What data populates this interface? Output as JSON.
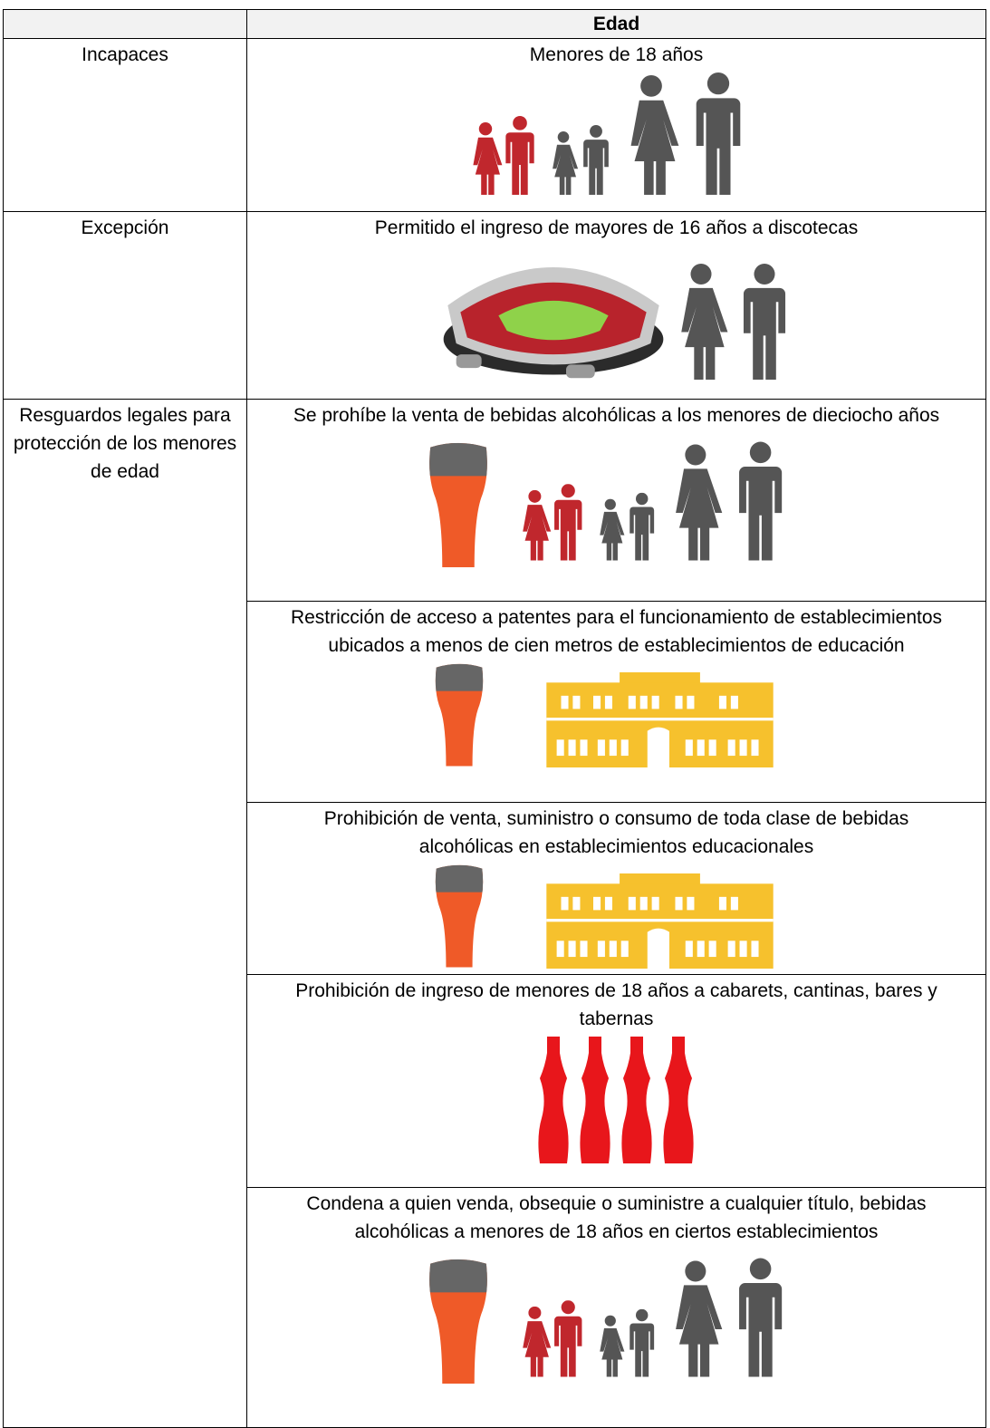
{
  "table": {
    "header": "Edad",
    "rows": [
      {
        "label": "Incapaces",
        "cells": [
          "Menores de 18 años"
        ]
      },
      {
        "label": "Excepción",
        "cells": [
          "Permitido el ingreso de mayores de 16 años a discotecas"
        ]
      },
      {
        "label": "Resguardos legales para protección de los menores de edad",
        "cells": [
          "Se prohíbe la venta de bebidas alcohólicas a los menores de dieciocho años",
          "Restricción de acceso a patentes para el funcionamiento de establecimientos ubicados a menos de cien metros de establecimientos de educación",
          "Prohibición de venta, suministro o consumo de toda clase de bebidas alcohólicas en establecimientos educacionales",
          "Prohibición de ingreso de menores de 18 años a cabarets, cantinas, bares y tabernas",
          "Condena a quien venda, obsequie o suministre a cualquier título, bebidas alcohólicas a menores de 18 años en ciertos establecimientos"
        ]
      }
    ]
  }
}
